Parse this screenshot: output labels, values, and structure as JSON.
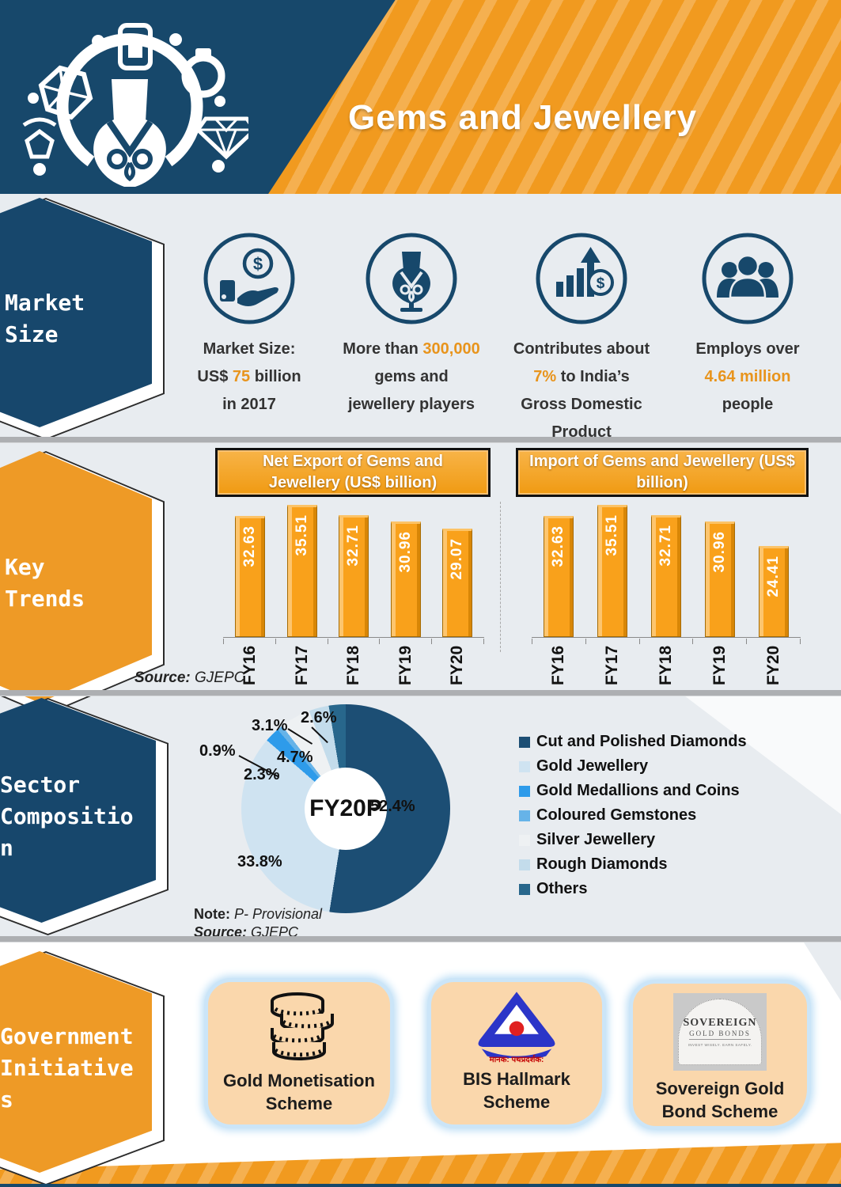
{
  "colors": {
    "navy": "#17486B",
    "orange": "#F19A1F",
    "orange_light_stripe": "#F5B050",
    "highlight_orange": "#E8941C",
    "section_bg": "#E8ECF0",
    "bar_orange": "#F9A11B",
    "card_peach": "#FAD7AC",
    "card_glow_blue": "#BEDFF6"
  },
  "header": {
    "title": "Gems and Jewellery"
  },
  "sections": {
    "market_size": {
      "label": "Market\nSize",
      "stats": [
        {
          "icon": "hand-coin-icon",
          "runs": [
            {
              "t": "Market Size:\nUS$ "
            },
            {
              "t": "75",
              "h": true
            },
            {
              "t": " billion\nin 2017"
            }
          ]
        },
        {
          "icon": "necklace-icon",
          "runs": [
            {
              "t": "More than "
            },
            {
              "t": "300,000",
              "h": true
            },
            {
              "t": "\ngems and\njewellery players"
            }
          ]
        },
        {
          "icon": "growth-dollar-icon",
          "runs": [
            {
              "t": "Contributes about\n"
            },
            {
              "t": "7%",
              "h": true
            },
            {
              "t": " to India’s\nGross Domestic Product"
            }
          ]
        },
        {
          "icon": "people-icon",
          "runs": [
            {
              "t": "Employs over\n"
            },
            {
              "t": "4.64 million",
              "h": true
            },
            {
              "t": "\npeople"
            }
          ]
        }
      ]
    },
    "key_trends": {
      "label": "Key\nTrends",
      "source_label": "Source:",
      "source_value": " GJEPC"
    },
    "sector_composition": {
      "label": "Sector\nCompositio\nn",
      "note_label": "Note:",
      "note_value": " P- Provisional",
      "source_label": "Source:",
      "source_value": " GJEPC"
    },
    "government_initiatives": {
      "label": "Government\nInitiative\ns",
      "cards": [
        {
          "icon": "gold-coins-icon",
          "label": "Gold Monetisation Scheme"
        },
        {
          "icon": "bis-logo",
          "label": "BIS Hallmark Scheme",
          "logo_text": "मानक: पथप्रदर्शक:"
        },
        {
          "icon": "sovereign-gold-bond-logo",
          "label": "Sovereign Gold Bond Scheme",
          "logo_line1": "SOVEREIGN",
          "logo_line2": "GOLD BONDS",
          "logo_line3": "INVEST WISELY. EARN SAFELY."
        }
      ]
    }
  },
  "chart_data": [
    {
      "type": "bar",
      "title": "Net Export of Gems and Jewellery (US$ billion)",
      "categories": [
        "FY16",
        "FY17",
        "FY18",
        "FY19",
        "FY20"
      ],
      "values": [
        32.63,
        35.51,
        32.71,
        30.96,
        29.07
      ],
      "xlabel": "",
      "ylabel": "US$ billion",
      "ylim": [
        0,
        38
      ],
      "grid": false,
      "legend_position": "none",
      "bar_color": "#F9A11B",
      "source": "GJEPC"
    },
    {
      "type": "bar",
      "title": "Import of Gems and Jewellery (US$ billion)",
      "categories": [
        "FY16",
        "FY17",
        "FY18",
        "FY19",
        "FY20"
      ],
      "values": [
        32.63,
        35.51,
        32.71,
        30.96,
        24.41
      ],
      "xlabel": "",
      "ylabel": "US$ billion",
      "ylim": [
        0,
        38
      ],
      "grid": false,
      "legend_position": "none",
      "bar_color": "#F9A11B",
      "source": "GJEPC"
    },
    {
      "type": "pie",
      "center_label": "FY20P",
      "note": "P- Provisional",
      "source": "GJEPC",
      "legend_position": "right",
      "slices": [
        {
          "label": "Cut and Polished Diamonds",
          "pct": 52.4,
          "color": "#1C4E74"
        },
        {
          "label": "Gold Jewellery",
          "pct": 33.8,
          "color": "#CFE3F1"
        },
        {
          "label": "Gold Medallions and Coins",
          "pct": 2.3,
          "color": "#2E9BEA"
        },
        {
          "label": "Coloured Gemstones",
          "pct": 0.9,
          "color": "#66B3E8"
        },
        {
          "label": "Silver Jewellery",
          "pct": 4.7,
          "color": "#EEF1F3"
        },
        {
          "label": "Rough Diamonds",
          "pct": 3.1,
          "color": "#C3DCEB"
        },
        {
          "label": "Others",
          "pct": 2.6,
          "color": "#28678C"
        }
      ]
    }
  ]
}
